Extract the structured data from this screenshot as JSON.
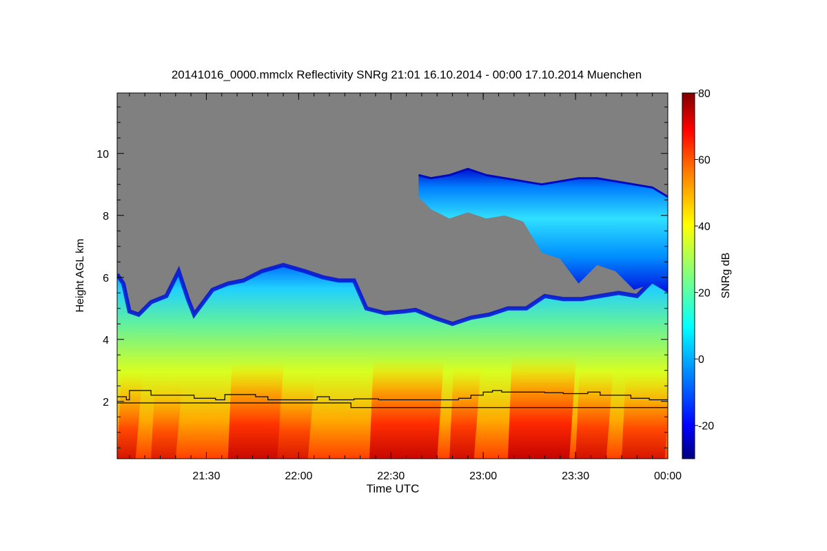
{
  "chart_data": {
    "type": "heatmap",
    "title": "20141016_0000.mmclx Reflectivity SNRg   21:01 16.10.2014 - 00:00 17.10.2014 Muenchen",
    "xlabel": "Time UTC",
    "ylabel": "Height AGL km",
    "x_range_minutes_utc": [
      1261,
      1440
    ],
    "x_ticks": [
      {
        "minute": 1290,
        "label": "21:30"
      },
      {
        "minute": 1320,
        "label": "22:00"
      },
      {
        "minute": 1350,
        "label": "22:30"
      },
      {
        "minute": 1380,
        "label": "23:00"
      },
      {
        "minute": 1410,
        "label": "23:30"
      },
      {
        "minute": 1440,
        "label": "00:00"
      }
    ],
    "y_range_km": [
      0.15,
      11.95
    ],
    "y_ticks": [
      {
        "value": 2,
        "label": "2"
      },
      {
        "value": 4,
        "label": "4"
      },
      {
        "value": 6,
        "label": "6"
      },
      {
        "value": 8,
        "label": "8"
      },
      {
        "value": 10,
        "label": "10"
      }
    ],
    "colorbar": {
      "label": "SNRg dB",
      "range": [
        -30,
        80
      ],
      "ticks": [
        {
          "value": -20,
          "label": "-20"
        },
        {
          "value": 0,
          "label": "0"
        },
        {
          "value": 20,
          "label": "20"
        },
        {
          "value": 40,
          "label": "40"
        },
        {
          "value": 60,
          "label": "60"
        },
        {
          "value": 80,
          "label": "80"
        }
      ],
      "colors": [
        "#00007f",
        "#0000ff",
        "#0080ff",
        "#00ffff",
        "#80ff80",
        "#ffff00",
        "#ff8000",
        "#ff0000",
        "#7f0000"
      ]
    },
    "no_data_color": "#808080",
    "cloud_top_km": [
      {
        "minute": 1261,
        "top": 6.1
      },
      {
        "minute": 1263,
        "top": 5.8
      },
      {
        "minute": 1265,
        "top": 4.9
      },
      {
        "minute": 1268,
        "top": 4.8
      },
      {
        "minute": 1272,
        "top": 5.2
      },
      {
        "minute": 1277,
        "top": 5.4
      },
      {
        "minute": 1281,
        "top": 6.2
      },
      {
        "minute": 1284,
        "top": 5.3
      },
      {
        "minute": 1286,
        "top": 4.8
      },
      {
        "minute": 1292,
        "top": 5.6
      },
      {
        "minute": 1297,
        "top": 5.8
      },
      {
        "minute": 1302,
        "top": 5.9
      },
      {
        "minute": 1308,
        "top": 6.2
      },
      {
        "minute": 1315,
        "top": 6.4
      },
      {
        "minute": 1322,
        "top": 6.2
      },
      {
        "minute": 1328,
        "top": 6.0
      },
      {
        "minute": 1333,
        "top": 5.9
      },
      {
        "minute": 1338,
        "top": 5.9
      },
      {
        "minute": 1342,
        "top": 5.0
      },
      {
        "minute": 1348,
        "top": 4.85
      },
      {
        "minute": 1354,
        "top": 4.9
      },
      {
        "minute": 1358,
        "top": 4.95
      },
      {
        "minute": 1364,
        "top": 4.7
      },
      {
        "minute": 1370,
        "top": 4.5
      },
      {
        "minute": 1376,
        "top": 4.7
      },
      {
        "minute": 1382,
        "top": 4.8
      },
      {
        "minute": 1388,
        "top": 5.0
      },
      {
        "minute": 1394,
        "top": 5.0
      },
      {
        "minute": 1400,
        "top": 5.4
      },
      {
        "minute": 1406,
        "top": 5.3
      },
      {
        "minute": 1412,
        "top": 5.3
      },
      {
        "minute": 1418,
        "top": 5.4
      },
      {
        "minute": 1424,
        "top": 5.5
      },
      {
        "minute": 1430,
        "top": 5.4
      },
      {
        "minute": 1436,
        "top": 6.0
      },
      {
        "minute": 1440,
        "top": 6.2
      }
    ],
    "upper_cloud_km": [
      {
        "minute": 1359,
        "top": 9.3,
        "base": 8.6
      },
      {
        "minute": 1363,
        "top": 9.2,
        "base": 8.2
      },
      {
        "minute": 1369,
        "top": 9.3,
        "base": 7.9
      },
      {
        "minute": 1375,
        "top": 9.5,
        "base": 8.1
      },
      {
        "minute": 1381,
        "top": 9.3,
        "base": 7.9
      },
      {
        "minute": 1387,
        "top": 9.2,
        "base": 8.0
      },
      {
        "minute": 1393,
        "top": 9.1,
        "base": 7.8
      },
      {
        "minute": 1399,
        "top": 9.0,
        "base": 6.8
      },
      {
        "minute": 1405,
        "top": 9.1,
        "base": 6.6
      },
      {
        "minute": 1411,
        "top": 9.2,
        "base": 5.8
      },
      {
        "minute": 1417,
        "top": 9.2,
        "base": 6.4
      },
      {
        "minute": 1423,
        "top": 9.1,
        "base": 6.2
      },
      {
        "minute": 1429,
        "top": 9.0,
        "base": 5.6
      },
      {
        "minute": 1435,
        "top": 8.9,
        "base": 5.8
      },
      {
        "minute": 1440,
        "top": 8.6,
        "base": 5.5
      }
    ],
    "rain_shafts": [
      {
        "minute": 1261,
        "width_min": 6,
        "snr_db": 60
      },
      {
        "minute": 1272,
        "width_min": 8,
        "snr_db": 55
      },
      {
        "minute": 1297,
        "width_min": 16,
        "snr_db": 70
      },
      {
        "minute": 1313,
        "width_min": 10,
        "snr_db": 58
      },
      {
        "minute": 1343,
        "width_min": 22,
        "snr_db": 72
      },
      {
        "minute": 1369,
        "width_min": 8,
        "snr_db": 66
      },
      {
        "minute": 1388,
        "width_min": 20,
        "snr_db": 74
      },
      {
        "minute": 1410,
        "width_min": 10,
        "snr_db": 64
      },
      {
        "minute": 1425,
        "width_min": 14,
        "snr_db": 60
      }
    ],
    "series": [
      {
        "name": "upper black line",
        "x": [
          1261,
          1264,
          1265,
          1271,
          1272,
          1285,
          1286,
          1293,
          1296,
          1306,
          1310,
          1316,
          1326,
          1330,
          1338,
          1346,
          1350,
          1356,
          1362,
          1368,
          1372,
          1376,
          1380,
          1383,
          1386,
          1390,
          1396,
          1400,
          1406,
          1410,
          1414,
          1418,
          1422,
          1428,
          1434,
          1440
        ],
        "values": [
          2.15,
          2.05,
          2.35,
          2.35,
          2.2,
          2.2,
          2.1,
          2.05,
          2.22,
          2.15,
          2.05,
          2.05,
          2.15,
          2.05,
          2.08,
          2.05,
          2.05,
          2.05,
          2.05,
          2.05,
          2.1,
          2.2,
          2.3,
          2.35,
          2.3,
          2.3,
          2.3,
          2.28,
          2.25,
          2.25,
          2.3,
          2.2,
          2.2,
          2.1,
          2.05,
          2.05
        ]
      },
      {
        "name": "lower black line",
        "x": [
          1261,
          1336,
          1337,
          1440
        ],
        "values": [
          1.95,
          1.95,
          1.8,
          1.8
        ]
      }
    ]
  }
}
